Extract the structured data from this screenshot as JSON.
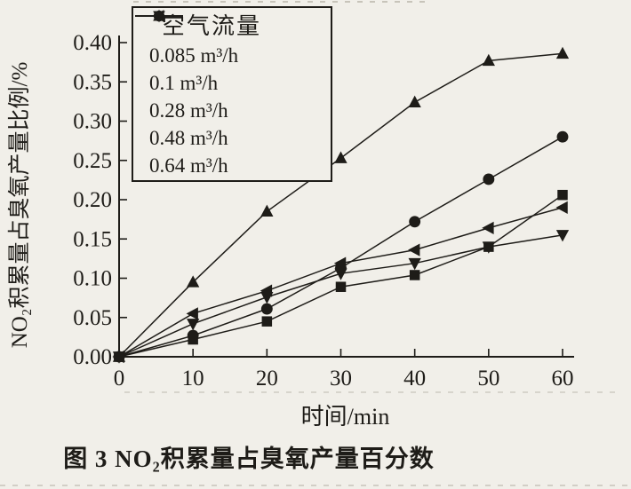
{
  "colors": {
    "ink": "#1e1c18",
    "paper": "#f1efe9",
    "artifact": "#bdb9ae"
  },
  "figure": {
    "caption": "图 3  NO₂积累量占臭氧产量百分数"
  },
  "chart_data": {
    "type": "line",
    "title": "",
    "xlabel": "时间/min",
    "ylabel": "NO₂积累量占臭氧产量比例/%",
    "xlim": [
      0,
      60
    ],
    "ylim": [
      0,
      0.4
    ],
    "grid": false,
    "x_ticks": [
      "0",
      "10",
      "20",
      "30",
      "40",
      "50",
      "60"
    ],
    "y_ticks": [
      "0.00",
      "0.05",
      "0.10",
      "0.15",
      "0.20",
      "0.25",
      "0.30",
      "0.35",
      "0.40"
    ],
    "legend_title": "空气流量",
    "legend_position": "top-left-inside",
    "x": [
      0,
      10,
      20,
      30,
      40,
      50,
      60
    ],
    "series": [
      {
        "name": "0.085 m³/h",
        "marker": "square",
        "values": [
          0,
          0.022,
          0.045,
          0.089,
          0.104,
          0.14,
          0.206
        ]
      },
      {
        "name": "0.1 m³/h",
        "marker": "circle",
        "values": [
          0,
          0.027,
          0.061,
          0.113,
          0.172,
          0.226,
          0.28
        ]
      },
      {
        "name": "0.28 m³/h",
        "marker": "triangle-up",
        "values": [
          0,
          0.095,
          0.185,
          0.253,
          0.324,
          0.377,
          0.386
        ]
      },
      {
        "name": "0.48 m³/h",
        "marker": "triangle-down",
        "values": [
          0,
          0.042,
          0.076,
          0.106,
          0.119,
          0.14,
          0.155
        ]
      },
      {
        "name": "0.64 m³/h",
        "marker": "triangle-left",
        "values": [
          0,
          0.055,
          0.084,
          0.119,
          0.136,
          0.164,
          0.19
        ]
      }
    ]
  }
}
